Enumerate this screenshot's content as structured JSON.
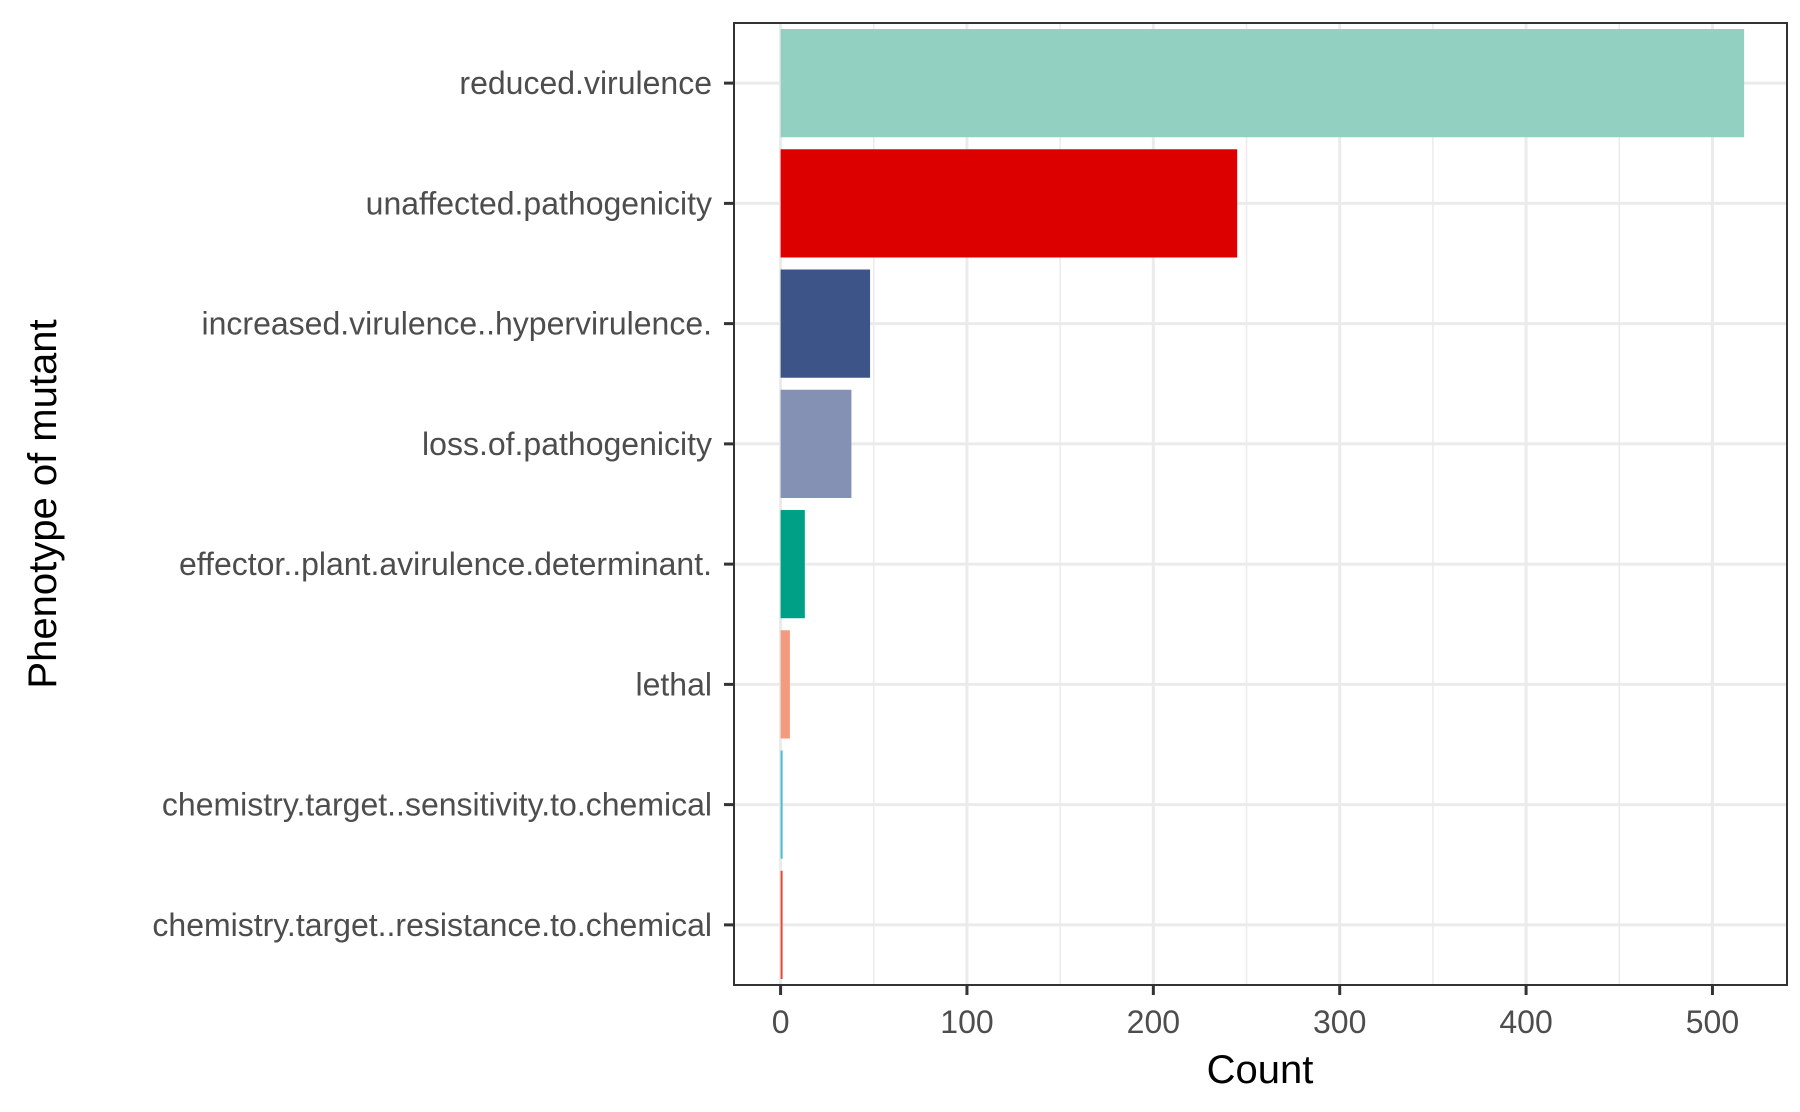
{
  "chart_data": {
    "type": "bar",
    "orientation": "horizontal",
    "xlabel": "Count",
    "ylabel": "Phenotype of mutant",
    "xlim": [
      -25,
      540
    ],
    "x_ticks": [
      0,
      100,
      200,
      300,
      400,
      500
    ],
    "x_tick_labels": [
      "0",
      "100",
      "200",
      "300",
      "400",
      "500"
    ],
    "grid": true,
    "legend": "none",
    "categories": [
      "reduced.virulence",
      "unaffected.pathogenicity",
      "increased.virulence..hypervirulence.",
      "loss.of.pathogenicity",
      "effector..plant.avirulence.determinant.",
      "lethal",
      "chemistry.target..sensitivity.to.chemical",
      "chemistry.target..resistance.to.chemical"
    ],
    "values": [
      517,
      245,
      48,
      38,
      13,
      5,
      1,
      1
    ],
    "colors": [
      "#92d1c2",
      "#dc0000",
      "#3c5488",
      "#8491b4",
      "#00a087",
      "#f39b7f",
      "#4dbbd5",
      "#e64b35"
    ]
  }
}
